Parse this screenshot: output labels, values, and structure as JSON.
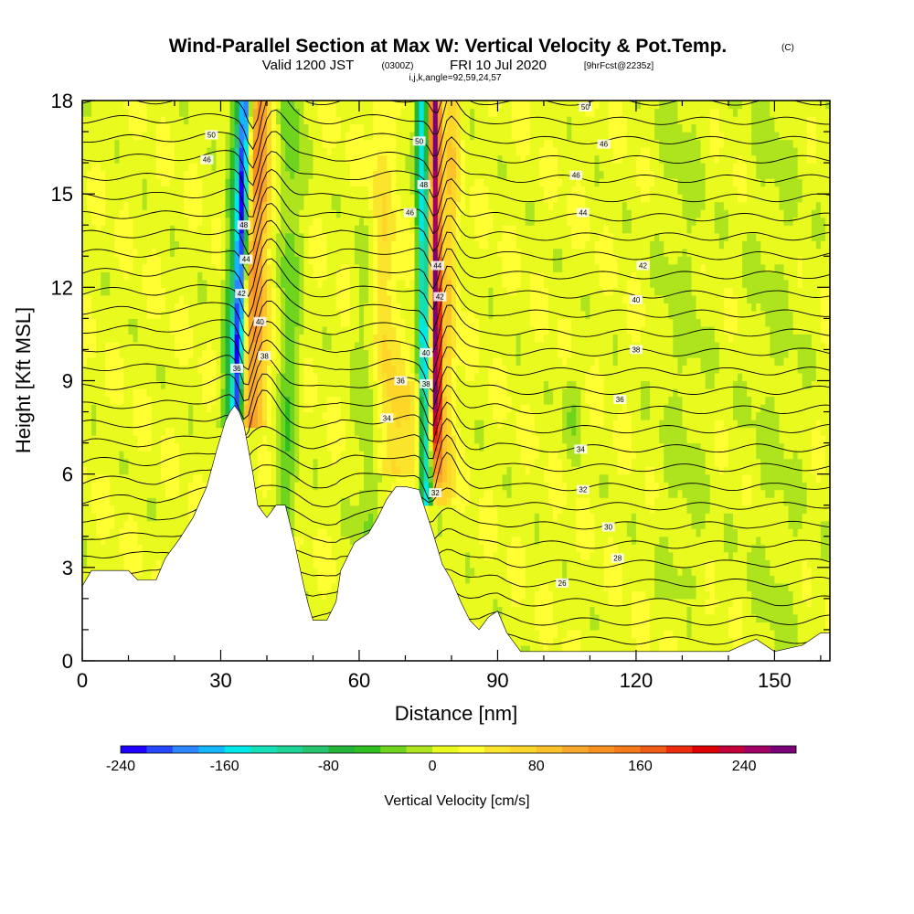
{
  "chart_data": {
    "type": "heatmap",
    "title": "Wind-Parallel Section at Max W: Vertical Velocity & Pot.Temp.",
    "title_mark": "(C)",
    "subtitle_main": "Valid 1200 JST",
    "subtitle_utc": "(0300Z)",
    "subtitle_date": "FRI 10 Jul 2020",
    "subtitle_fcst": "[9hrFcst@2235z]",
    "subtitle_indices": "i,j,k,angle=92,59,24,57",
    "xlabel": "Distance [nm]",
    "ylabel": "Height [Kft MSL]",
    "xlim": [
      0,
      162
    ],
    "ylim": [
      0,
      18
    ],
    "x_ticks": [
      0,
      30,
      60,
      90,
      120,
      150
    ],
    "y_ticks": [
      0,
      3,
      6,
      9,
      12,
      15,
      18
    ],
    "colorbar": {
      "label": "Vertical Velocity [cm/s]",
      "range": [
        -240,
        280
      ],
      "ticks": [
        -240,
        -160,
        -80,
        0,
        80,
        160,
        240
      ],
      "colors": [
        "#1f00ff",
        "#2646ff",
        "#2d86ff",
        "#13b6ff",
        "#00e8e8",
        "#14e0b8",
        "#1ed396",
        "#27c46f",
        "#23b43a",
        "#2fbf20",
        "#6ed41e",
        "#aee41e",
        "#e8fa1e",
        "#ffff33",
        "#fbe52c",
        "#fdd629",
        "#fdc22a",
        "#f7a729",
        "#f7901f",
        "#f47a1b",
        "#ef5a14",
        "#ec2b0d",
        "#dd0000",
        "#c4003a",
        "#a10065",
        "#7a0078"
      ]
    },
    "theta_contour_labels": [
      "50",
      "46",
      "48",
      "44",
      "42",
      "40",
      "38",
      "36",
      "34",
      "32",
      "30",
      "28",
      "26"
    ],
    "terrain_profile_kft": [
      [
        0,
        2.4
      ],
      [
        2,
        2.9
      ],
      [
        5,
        2.9
      ],
      [
        10,
        2.9
      ],
      [
        12,
        2.6
      ],
      [
        16,
        2.6
      ],
      [
        18,
        3.3
      ],
      [
        21,
        3.9
      ],
      [
        24,
        4.6
      ],
      [
        27,
        5.6
      ],
      [
        29,
        6.7
      ],
      [
        31,
        7.7
      ],
      [
        32,
        8.0
      ],
      [
        33,
        8.2
      ],
      [
        34,
        8.0
      ],
      [
        35,
        7.6
      ],
      [
        36,
        6.8
      ],
      [
        37,
        6.0
      ],
      [
        38,
        5.0
      ],
      [
        40,
        4.6
      ],
      [
        42,
        5.0
      ],
      [
        44,
        5.0
      ],
      [
        46,
        3.8
      ],
      [
        47,
        3.1
      ],
      [
        48,
        2.4
      ],
      [
        49,
        1.8
      ],
      [
        50,
        1.3
      ],
      [
        53,
        1.3
      ],
      [
        55,
        1.9
      ],
      [
        56,
        2.9
      ],
      [
        59,
        3.8
      ],
      [
        62,
        4.1
      ],
      [
        64,
        4.6
      ],
      [
        66,
        5.2
      ],
      [
        68,
        5.6
      ],
      [
        70,
        5.6
      ],
      [
        73,
        5.5
      ],
      [
        74,
        5.0
      ],
      [
        76,
        4.1
      ],
      [
        78,
        3.1
      ],
      [
        80,
        2.6
      ],
      [
        82,
        1.9
      ],
      [
        84,
        1.3
      ],
      [
        86,
        1.0
      ],
      [
        88,
        1.4
      ],
      [
        90,
        1.6
      ],
      [
        92,
        0.9
      ],
      [
        95,
        0.3
      ],
      [
        110,
        0.3
      ],
      [
        130,
        0.3
      ],
      [
        140,
        0.3
      ],
      [
        146,
        0.7
      ],
      [
        150,
        0.3
      ],
      [
        156,
        0.5
      ],
      [
        160,
        0.9
      ],
      [
        162,
        0.9
      ]
    ]
  }
}
